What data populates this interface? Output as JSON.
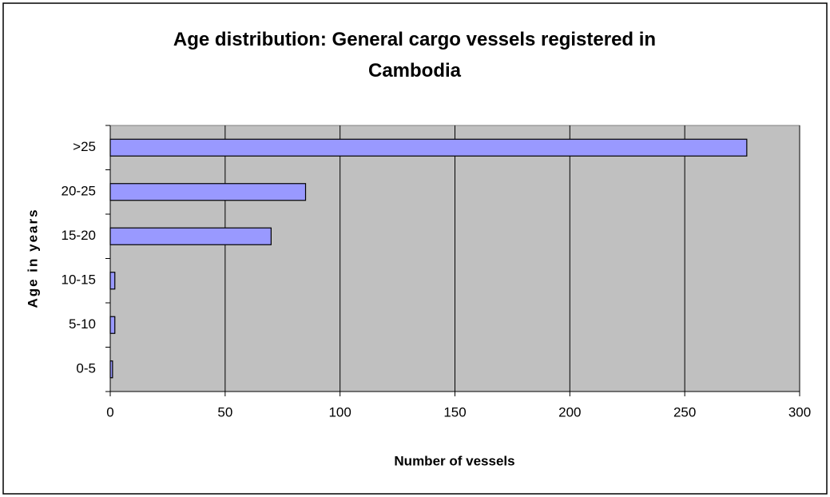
{
  "chart_data": {
    "type": "barh",
    "title": "Age distribution: General cargo vessels registered in Cambodia",
    "categories": [
      "0-5",
      "5-10",
      "10-15",
      "15-20",
      "20-25",
      ">25"
    ],
    "values": [
      1,
      2,
      2,
      70,
      85,
      277
    ],
    "color": "#9999ff",
    "xlim": [
      0,
      300
    ],
    "xticks": [
      0,
      50,
      100,
      150,
      200,
      250,
      300
    ],
    "xlabel": "Number of vessels",
    "ylabel": "Age in years",
    "grid": true
  }
}
